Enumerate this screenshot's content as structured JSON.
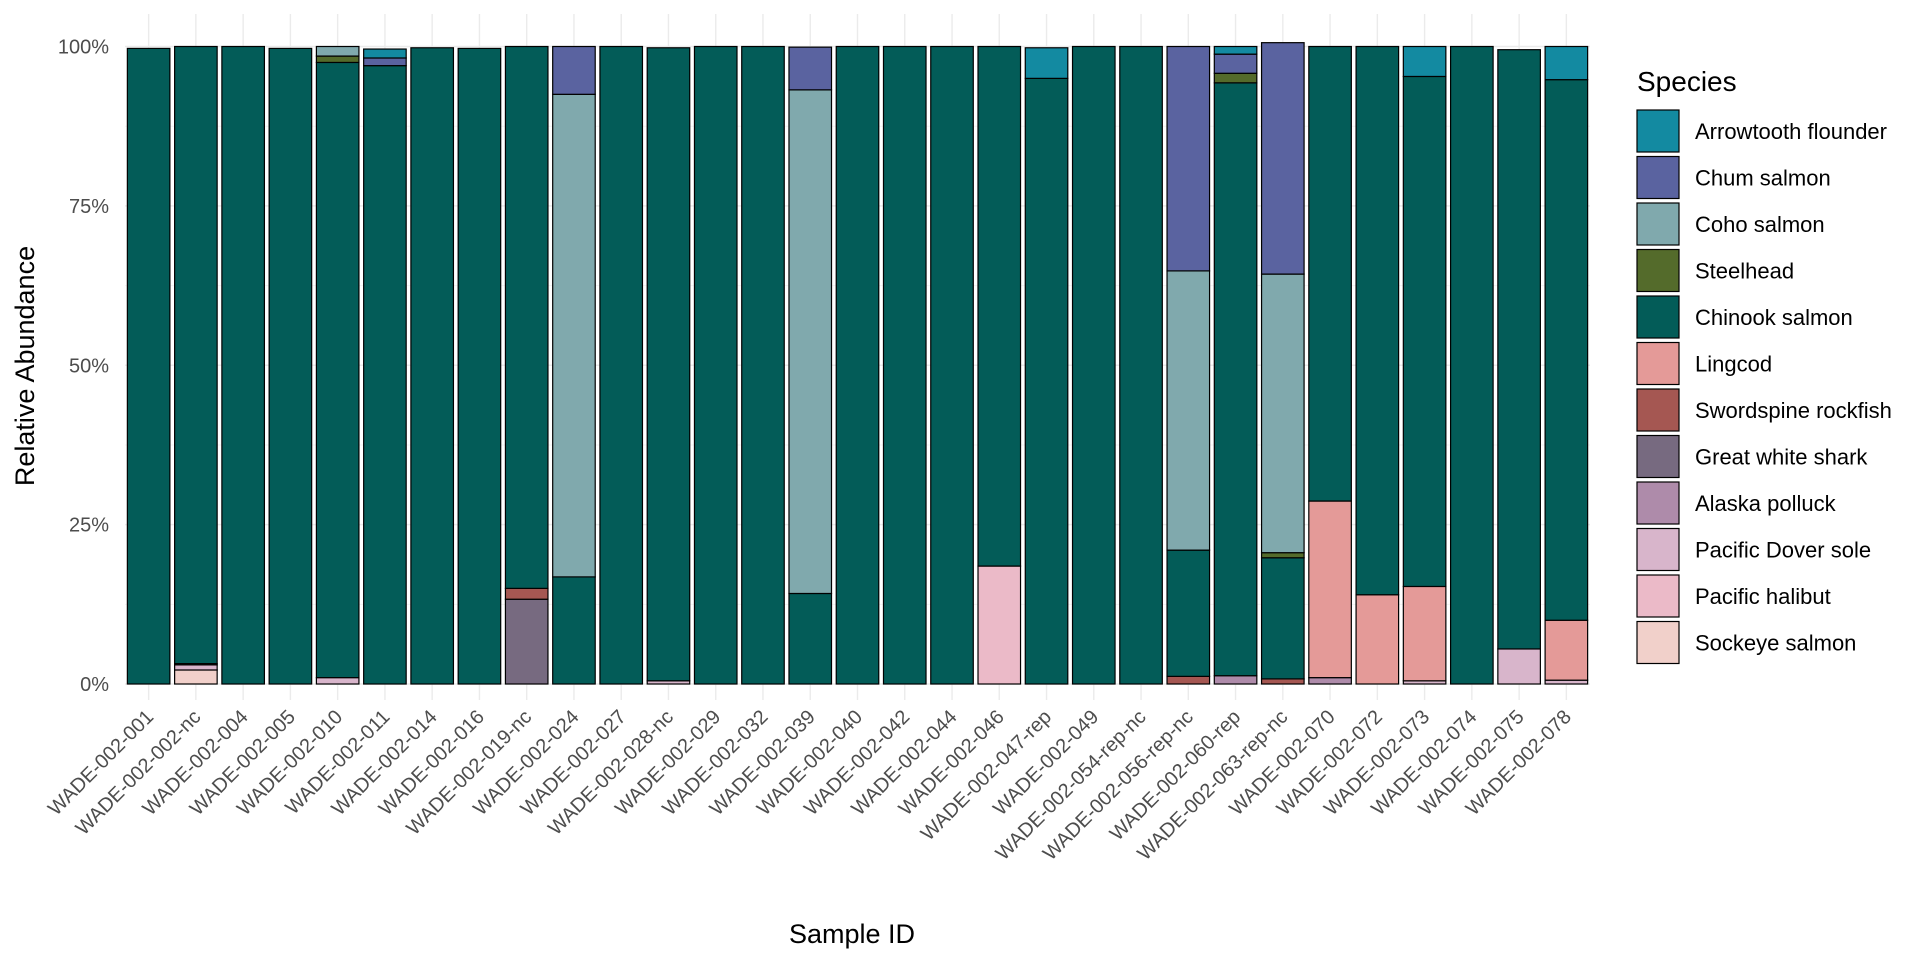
{
  "chart_data": {
    "type": "bar",
    "stacked": true,
    "xlabel": "Sample ID",
    "ylabel": "Relative Abundance",
    "ylim": [
      0,
      1
    ],
    "yticks": [
      0,
      0.25,
      0.5,
      0.75,
      1
    ],
    "ytick_labels": [
      "0%",
      "25%",
      "50%",
      "75%",
      "100%"
    ],
    "grid": true,
    "legend_title": "Species",
    "legend_position": "right",
    "categories": [
      "WADE-002-001",
      "WADE-002-002-nc",
      "WADE-002-004",
      "WADE-002-005",
      "WADE-002-010",
      "WADE-002-011",
      "WADE-002-014",
      "WADE-002-016",
      "WADE-002-019-nc",
      "WADE-002-024",
      "WADE-002-027",
      "WADE-002-028-nc",
      "WADE-002-029",
      "WADE-002-032",
      "WADE-002-039",
      "WADE-002-040",
      "WADE-002-042",
      "WADE-002-044",
      "WADE-002-046",
      "WADE-002-047-rep",
      "WADE-002-049",
      "WADE-002-054-rep-nc",
      "WADE-002-056-rep-nc",
      "WADE-002-060-rep",
      "WADE-002-063-rep-nc",
      "WADE-002-070",
      "WADE-002-072",
      "WADE-002-073",
      "WADE-002-074",
      "WADE-002-075",
      "WADE-002-078"
    ],
    "series": [
      {
        "name": "Arrowtooth flounder",
        "color": "#138aa1",
        "values": [
          0,
          0,
          0,
          0,
          0,
          0.014,
          0,
          0,
          0,
          0,
          0,
          0,
          0,
          0,
          0,
          0,
          0,
          0,
          0,
          0.048,
          0,
          0,
          0,
          0.012,
          0,
          0,
          0,
          0.047,
          0,
          0,
          0.052
        ]
      },
      {
        "name": "Chum salmon",
        "color": "#5a63a0",
        "values": [
          0,
          0,
          0,
          0,
          0,
          0.012,
          0,
          0,
          0,
          0.075,
          0,
          0,
          0,
          0,
          0.067,
          0,
          0,
          0,
          0,
          0,
          0,
          0,
          0.352,
          0.03,
          0.363,
          0,
          0,
          0,
          0,
          0,
          0
        ]
      },
      {
        "name": "Coho salmon",
        "color": "#80a9ad",
        "values": [
          0,
          0,
          0,
          0,
          0.015,
          0,
          0,
          0,
          0,
          0.757,
          0,
          0,
          0,
          0,
          0.79,
          0,
          0,
          0,
          0,
          0,
          0,
          0,
          0.438,
          0,
          0.437,
          0,
          0,
          0,
          0,
          0,
          0
        ]
      },
      {
        "name": "Steelhead",
        "color": "#546b2b",
        "values": [
          0,
          0,
          0,
          0,
          0.01,
          0,
          0,
          0,
          0,
          0,
          0,
          0,
          0,
          0,
          0,
          0,
          0,
          0,
          0,
          0,
          0,
          0,
          0,
          0.015,
          0.008,
          0,
          0,
          0,
          0,
          0,
          0
        ]
      },
      {
        "name": "Chinook salmon",
        "color": "#035c58",
        "values": [
          0.997,
          0.968,
          1,
          0.997,
          0.965,
          0.97,
          0.998,
          0.997,
          0.85,
          0.168,
          1,
          0.993,
          1,
          1,
          0.142,
          1,
          1,
          1,
          0.815,
          0.95,
          1,
          1,
          0.198,
          0.93,
          0.19,
          0.713,
          0.86,
          0.8,
          1,
          0.94,
          0.848
        ]
      },
      {
        "name": "Lingcod",
        "color": "#e49a98",
        "values": [
          0,
          0,
          0,
          0,
          0,
          0,
          0,
          0,
          0,
          0,
          0,
          0,
          0,
          0,
          0,
          0,
          0,
          0,
          0,
          0,
          0,
          0,
          0,
          0,
          0,
          0.277,
          0.14,
          0.148,
          0,
          0,
          0.094
        ]
      },
      {
        "name": "Swordspine rockfish",
        "color": "#a55752",
        "values": [
          0,
          0.002,
          0,
          0,
          0,
          0,
          0,
          0,
          0.017,
          0,
          0,
          0,
          0,
          0,
          0,
          0,
          0,
          0,
          0,
          0,
          0,
          0,
          0.012,
          0,
          0.008,
          0,
          0,
          0,
          0,
          0,
          0
        ]
      },
      {
        "name": "Great white shark",
        "color": "#776a80",
        "values": [
          0,
          0,
          0,
          0,
          0,
          0,
          0,
          0,
          0.133,
          0,
          0,
          0,
          0,
          0,
          0,
          0,
          0,
          0,
          0,
          0,
          0,
          0,
          0,
          0,
          0,
          0,
          0,
          0,
          0,
          0,
          0
        ]
      },
      {
        "name": "Alaska polluck",
        "color": "#ae8baa",
        "values": [
          0,
          0,
          0,
          0,
          0,
          0,
          0,
          0,
          0,
          0,
          0,
          0,
          0,
          0,
          0,
          0,
          0,
          0,
          0,
          0,
          0,
          0,
          0,
          0.013,
          0,
          0.01,
          0,
          0,
          0,
          0,
          0
        ]
      },
      {
        "name": "Pacific Dover sole",
        "color": "#d8b5cb",
        "values": [
          0,
          0.008,
          0,
          0,
          0.01,
          0,
          0,
          0,
          0,
          0,
          0,
          0.005,
          0,
          0,
          0,
          0,
          0,
          0,
          0,
          0,
          0,
          0,
          0,
          0,
          0,
          0,
          0,
          0.005,
          0,
          0.055,
          0.006
        ]
      },
      {
        "name": "Pacific halibut",
        "color": "#ebbac8",
        "values": [
          0,
          0,
          0,
          0,
          0,
          0,
          0,
          0,
          0,
          0,
          0,
          0,
          0,
          0,
          0,
          0,
          0,
          0,
          0.185,
          0,
          0,
          0,
          0,
          0,
          0,
          0,
          0,
          0,
          0,
          0,
          0
        ]
      },
      {
        "name": "Sockeye salmon",
        "color": "#f1d0ca",
        "values": [
          0,
          0.022,
          0,
          0,
          0,
          0,
          0,
          0,
          0,
          0,
          0,
          0,
          0,
          0,
          0,
          0,
          0,
          0,
          0,
          0,
          0,
          0,
          0,
          0,
          0,
          0,
          0,
          0,
          0,
          0,
          0
        ]
      }
    ]
  }
}
